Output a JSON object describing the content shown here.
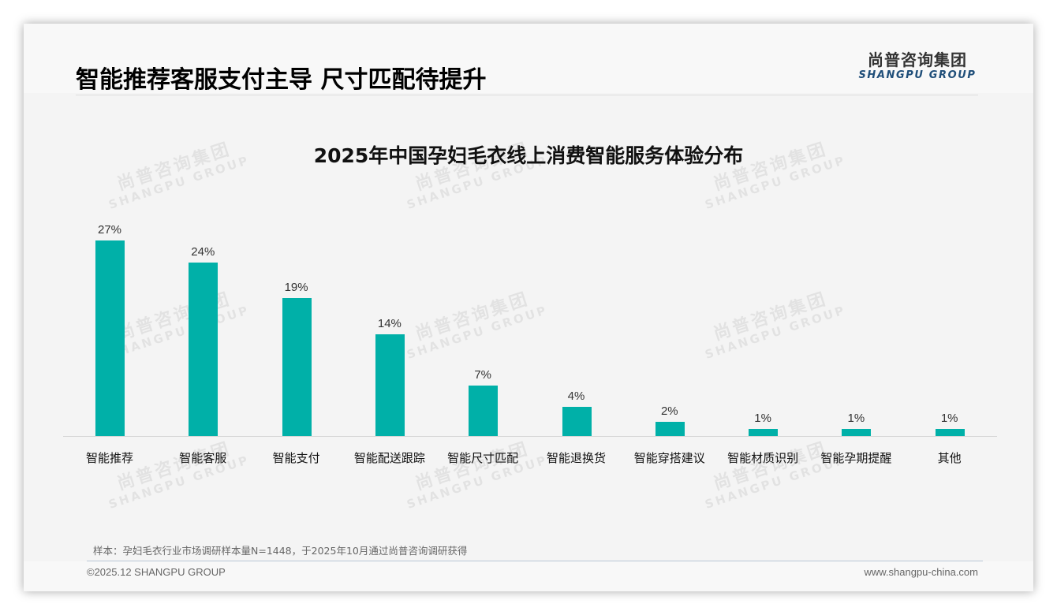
{
  "header": {
    "title": "智能推荐客服支付主导 尺寸匹配待提升",
    "logo_cn": "尚普咨询集团",
    "logo_en": "SHANGPU GROUP"
  },
  "watermark": {
    "cn": "尚普咨询集团",
    "en": "SHANGPU GROUP"
  },
  "colors": {
    "bar": "#00b0a8",
    "logo_en": "#1f4e79"
  },
  "chart_data": {
    "type": "bar",
    "title": "2025年中国孕妇毛衣线上消费智能服务体验分布",
    "xlabel": "",
    "ylabel": "",
    "ylim": [
      0,
      30
    ],
    "grid": false,
    "legend": null,
    "categories": [
      "智能推荐",
      "智能客服",
      "智能支付",
      "智能配送跟踪",
      "智能尺寸匹配",
      "智能退换货",
      "智能穿搭建议",
      "智能材质识别",
      "智能孕期提醒",
      "其他"
    ],
    "values": [
      27,
      24,
      19,
      14,
      7,
      4,
      2,
      1,
      1,
      1
    ],
    "value_labels": [
      "27%",
      "24%",
      "19%",
      "14%",
      "7%",
      "4%",
      "2%",
      "1%",
      "1%",
      "1%"
    ],
    "unit": "%"
  },
  "footer": {
    "note": "样本：孕妇毛衣行业市场调研样本量N=1448，于2025年10月通过尚普咨询调研获得",
    "copyright": "©2025.12 SHANGPU GROUP",
    "website": "www.shangpu-china.com"
  }
}
